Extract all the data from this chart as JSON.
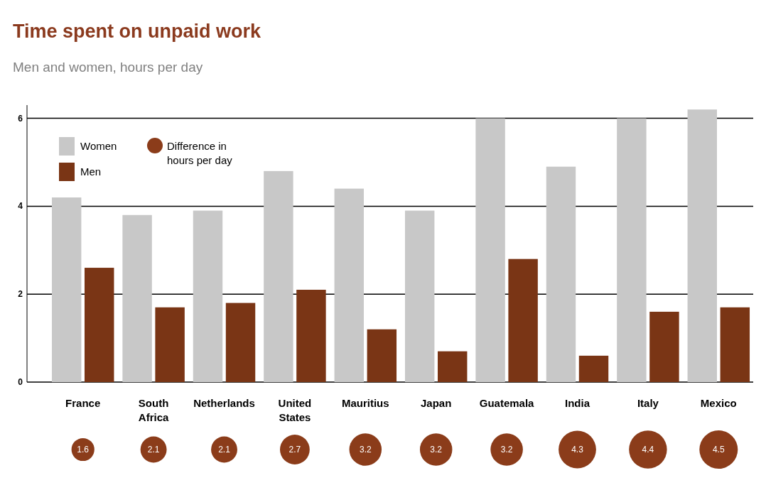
{
  "chart_data": [
    {
      "type": "bar",
      "title": "Time spent on unpaid work",
      "subtitle": "Men and women, hours per day",
      "categories": [
        "France",
        "South Africa",
        "Netherlands",
        "United States",
        "Mauritius",
        "Japan",
        "Guatemala",
        "India",
        "Italy",
        "Mexico"
      ],
      "series": [
        {
          "name": "Women",
          "color": "#c8c8c8",
          "values": [
            4.2,
            3.8,
            3.9,
            4.8,
            4.4,
            3.9,
            6.0,
            4.9,
            6.0,
            6.2
          ]
        },
        {
          "name": "Men",
          "color": "#7a3515",
          "values": [
            2.6,
            1.7,
            1.8,
            2.1,
            1.2,
            0.7,
            2.8,
            0.6,
            1.6,
            1.7
          ]
        }
      ],
      "ylim": [
        0,
        6.3
      ],
      "yticks": [
        0,
        2,
        4,
        6
      ],
      "grid": "y",
      "legend": "top left"
    },
    {
      "type": "other",
      "categories": [
        null,
        null,
        null,
        null,
        null,
        null,
        null,
        null,
        null,
        null
      ],
      "series": [
        {
          "name": "Difference in hours per day",
          "color": "#8b3c1a",
          "values": [
            1.6,
            2.1,
            2.1,
            2.7,
            3.2,
            3.2,
            3.2,
            4.3,
            4.4,
            4.5
          ]
        }
      ],
      "data_labels": true
    }
  ]
}
